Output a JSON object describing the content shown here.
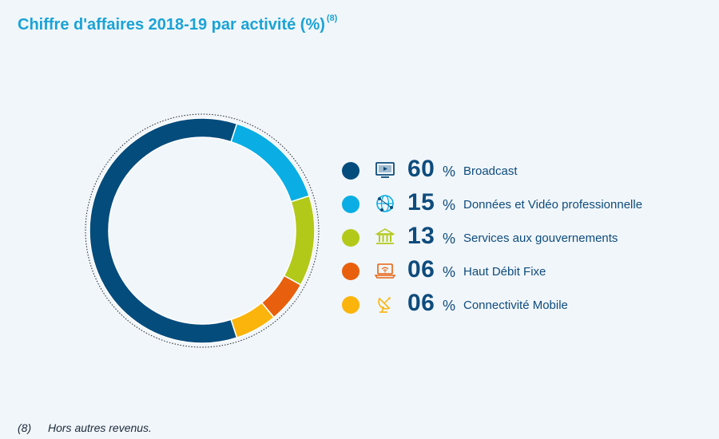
{
  "title": "Chiffre d'affaires 2018-19 par activité (%)",
  "title_ref": "(8)",
  "footnote": {
    "ref": "(8)",
    "text": "Hors autres revenus."
  },
  "percent_sign": "%",
  "chart_data": {
    "type": "pie",
    "variant": "donut",
    "title": "Chiffre d'affaires 2018-19 par activité (%)",
    "categories": [
      "Broadcast",
      "Données et Vidéo professionnelle",
      "Services aux gouvernements",
      "Haut Débit Fixe",
      "Connectivité Mobile"
    ],
    "values": [
      60,
      15,
      13,
      6,
      6
    ],
    "value_labels": [
      "60",
      "15",
      "13",
      "06",
      "06"
    ],
    "colors": [
      "#044c7c",
      "#0aaee4",
      "#b3c91a",
      "#e8600e",
      "#fbb40b"
    ],
    "icons": [
      "tv-icon",
      "globe-network-icon",
      "government-building-icon",
      "laptop-wifi-icon",
      "satellite-dish-icon"
    ],
    "legend_position": "right"
  }
}
